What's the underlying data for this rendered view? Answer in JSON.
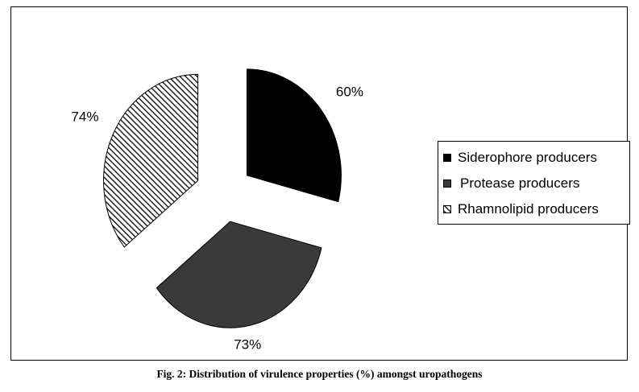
{
  "chart_data": {
    "type": "pie",
    "title": "",
    "exploded": true,
    "legend_position": "right",
    "series": [
      {
        "name": "Siderophore producers",
        "value": 60,
        "label": "60%",
        "color": "#000000",
        "pattern": "solid-black"
      },
      {
        "name": "Protease producers",
        "value": 73,
        "label": "73%",
        "color": "#3a3a3a",
        "pattern": "solid-darkgray"
      },
      {
        "name": "Rhamnolipid producers",
        "value": 74,
        "label": "74%",
        "color": "#000000",
        "pattern": "diagonal-hatch"
      }
    ]
  },
  "caption": "Fig. 2: Distribution of virulence properties (%) amongst uropathogens"
}
